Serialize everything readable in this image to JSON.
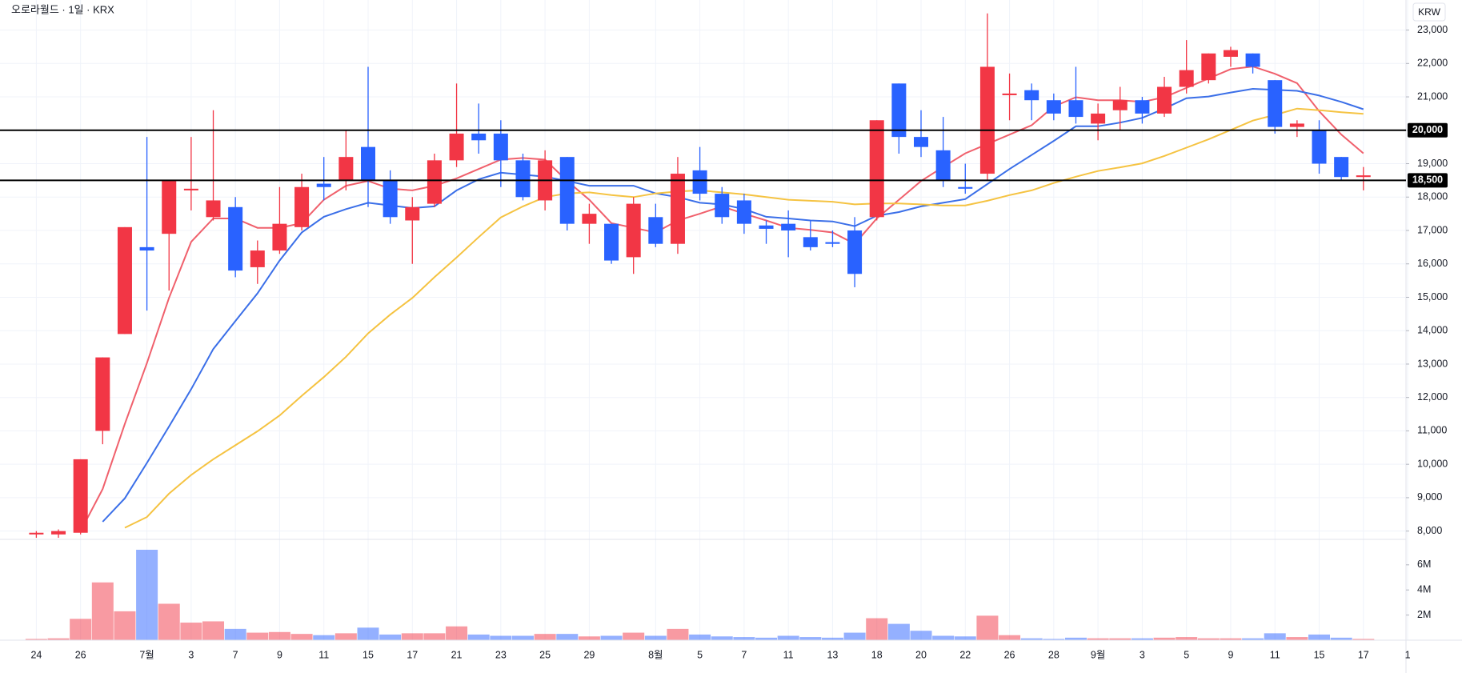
{
  "chart_data": {
    "type": "candlestick",
    "title": "오로라월드 · 1일 · KRX",
    "currency": "KRW",
    "categories": [
      "24",
      null,
      "26",
      null,
      null,
      "7월",
      null,
      "3",
      null,
      "7",
      null,
      "9",
      null,
      "11",
      null,
      "15",
      null,
      "17",
      null,
      "21",
      null,
      "23",
      null,
      "25",
      null,
      "29",
      null,
      null,
      "8월",
      null,
      "5",
      null,
      "7",
      null,
      "11",
      null,
      "13",
      null,
      "18",
      null,
      "20",
      null,
      "22",
      null,
      "26",
      null,
      "28",
      null,
      "9월",
      null,
      "3",
      null,
      "5",
      null,
      "9",
      null,
      "11",
      null,
      "15",
      null,
      "17",
      null,
      "1"
    ],
    "open": [
      7900,
      7900,
      7950,
      11000,
      13900,
      16500,
      16900,
      18200,
      17400,
      17700,
      15900,
      16400,
      17100,
      18400,
      18500,
      19500,
      18500,
      17300,
      17800,
      19100,
      19900,
      19900,
      19100,
      17900,
      19200,
      17200,
      17200,
      16200,
      17400,
      16600,
      18800,
      18100,
      17900,
      17150,
      17200,
      16800,
      16650,
      17000,
      17400,
      21400,
      19800,
      19400,
      18300,
      18700,
      21050,
      21200,
      20900,
      20900,
      20200,
      20600,
      20900,
      20500,
      21300,
      21500,
      22200,
      22300,
      21500,
      20100,
      20000,
      19200,
      18600,
      null,
      null
    ],
    "high": [
      8000,
      8050,
      10150,
      13200,
      17100,
      19800,
      18500,
      19800,
      20600,
      18000,
      16700,
      18300,
      18700,
      19200,
      20000,
      21900,
      18800,
      18000,
      19300,
      21400,
      20800,
      20300,
      19300,
      19400,
      19200,
      17800,
      17200,
      18000,
      17800,
      19200,
      19500,
      18300,
      18100,
      17300,
      17600,
      17300,
      17000,
      17400,
      20300,
      21400,
      20600,
      20400,
      19000,
      23500,
      21700,
      21400,
      21100,
      21900,
      20800,
      21300,
      21000,
      21600,
      22700,
      22300,
      22500,
      22300,
      21500,
      20300,
      20300,
      19200,
      18900,
      null,
      null
    ],
    "low": [
      7800,
      7800,
      7900,
      10600,
      13900,
      14600,
      15200,
      17600,
      17300,
      15600,
      15400,
      16300,
      17000,
      17900,
      18200,
      17700,
      17200,
      16000,
      17700,
      18900,
      19300,
      18300,
      17900,
      17600,
      17000,
      16600,
      16000,
      15700,
      16500,
      16300,
      17900,
      17200,
      16900,
      16600,
      16200,
      16400,
      16500,
      15300,
      17300,
      19300,
      19200,
      18300,
      18100,
      18500,
      20300,
      20300,
      20300,
      20200,
      19700,
      20000,
      20200,
      20400,
      21100,
      21400,
      21900,
      21700,
      19900,
      19800,
      18700,
      18500,
      18200,
      null,
      null
    ],
    "close": [
      7950,
      8000,
      10150,
      13200,
      17100,
      16400,
      18500,
      18250,
      17900,
      15800,
      16400,
      17200,
      18300,
      18300,
      19200,
      18500,
      17400,
      17700,
      19100,
      19900,
      19700,
      19100,
      18000,
      19100,
      17200,
      17500,
      16100,
      17800,
      16600,
      18700,
      18100,
      17400,
      17200,
      17050,
      17000,
      16500,
      16600,
      15700,
      20300,
      19800,
      19500,
      18500,
      18250,
      21900,
      21100,
      20900,
      20500,
      20400,
      20500,
      20900,
      20500,
      21300,
      21800,
      22300,
      22400,
      21900,
      20100,
      20200,
      19000,
      18600,
      18650,
      null,
      null
    ],
    "volume": [
      100000,
      150000,
      1700000,
      4600000,
      2300000,
      7200000,
      2900000,
      1400000,
      1500000,
      900000,
      600000,
      650000,
      500000,
      400000,
      550000,
      1000000,
      450000,
      550000,
      550000,
      1100000,
      450000,
      350000,
      350000,
      500000,
      500000,
      300000,
      350000,
      600000,
      350000,
      900000,
      450000,
      300000,
      250000,
      200000,
      350000,
      250000,
      200000,
      600000,
      1750000,
      1300000,
      750000,
      350000,
      300000,
      1950000,
      400000,
      150000,
      100000,
      200000,
      150000,
      150000,
      150000,
      200000,
      250000,
      150000,
      150000,
      150000,
      550000,
      250000,
      450000,
      200000,
      100000,
      null,
      null
    ],
    "up_color": "#f23645",
    "down_color": "#2962ff",
    "moving_averages": [
      {
        "color": "#f0606c",
        "values": [
          null,
          null,
          8000,
          9260,
          11210,
          13030,
          14980,
          16660,
          17360,
          17360,
          17080,
          17080,
          17220,
          17920,
          18340,
          18480,
          18250,
          18200,
          18340,
          18560,
          18840,
          19120,
          19170,
          19120,
          18480,
          17920,
          17220,
          17080,
          16940,
          17300,
          17500,
          17720,
          17500,
          17300,
          17080,
          17020,
          16940,
          16600,
          17360,
          17920,
          18480,
          18900,
          19310,
          19590,
          19870,
          20150,
          20710,
          20990,
          20900,
          20900,
          20850,
          20990,
          21270,
          21550,
          21830,
          21910,
          21690,
          21410,
          20570,
          19870,
          19310,
          null,
          null
        ]
      },
      {
        "color": "#3b6fe8",
        "values": [
          null,
          null,
          null,
          8280,
          8980,
          10040,
          11130,
          12250,
          13450,
          14290,
          15120,
          16100,
          16940,
          17410,
          17640,
          17830,
          17750,
          17670,
          17720,
          18200,
          18530,
          18730,
          18670,
          18610,
          18480,
          18340,
          18340,
          18340,
          18110,
          18000,
          17830,
          17780,
          17640,
          17410,
          17360,
          17300,
          17270,
          17130,
          17440,
          17550,
          17720,
          17830,
          17940,
          18390,
          18840,
          19260,
          19680,
          20120,
          20120,
          20230,
          20370,
          20650,
          20960,
          21010,
          21130,
          21240,
          21210,
          21180,
          21040,
          20850,
          20630,
          null,
          null
        ]
      },
      {
        "color": "#f5c342",
        "values": [
          null,
          null,
          null,
          null,
          8100,
          8420,
          9120,
          9680,
          10150,
          10570,
          10990,
          11460,
          12050,
          12610,
          13220,
          13920,
          14480,
          14980,
          15600,
          16190,
          16800,
          17390,
          17720,
          18000,
          18110,
          18140,
          18060,
          18000,
          18110,
          18170,
          18200,
          18140,
          18080,
          18000,
          17920,
          17890,
          17860,
          17780,
          17810,
          17810,
          17780,
          17750,
          17750,
          17890,
          18060,
          18200,
          18420,
          18610,
          18780,
          18890,
          19010,
          19230,
          19480,
          19730,
          20010,
          20290,
          20460,
          20650,
          20600,
          20540,
          20490,
          null,
          null
        ]
      }
    ],
    "ylim": [
      7800,
      23900
    ],
    "yticks": [
      {
        "value": 8000,
        "label": "8,000"
      },
      {
        "value": 9000,
        "label": "9,000"
      },
      {
        "value": 10000,
        "label": "10,000"
      },
      {
        "value": 11000,
        "label": "11,000"
      },
      {
        "value": 12000,
        "label": "12,000"
      },
      {
        "value": 13000,
        "label": "13,000"
      },
      {
        "value": 14000,
        "label": "14,000"
      },
      {
        "value": 15000,
        "label": "15,000"
      },
      {
        "value": 16000,
        "label": "16,000"
      },
      {
        "value": 17000,
        "label": "17,000"
      },
      {
        "value": 18000,
        "label": "18,000"
      },
      {
        "value": 19000,
        "label": "19,000"
      },
      {
        "value": 20000,
        "label": "20,000"
      },
      {
        "value": 21000,
        "label": "21,000"
      },
      {
        "value": 22000,
        "label": "22,000"
      },
      {
        "value": 23000,
        "label": "23,000"
      }
    ],
    "horizontal_lines": [
      {
        "value": 20000,
        "label": "20,000"
      },
      {
        "value": 18500,
        "label": "18,500"
      }
    ],
    "volume_ylim": [
      0,
      7900000
    ],
    "volume_yticks": [
      {
        "value": 2000000,
        "label": "2M"
      },
      {
        "value": 4000000,
        "label": "4M"
      },
      {
        "value": 6000000,
        "label": "6M"
      }
    ],
    "grid": true
  }
}
